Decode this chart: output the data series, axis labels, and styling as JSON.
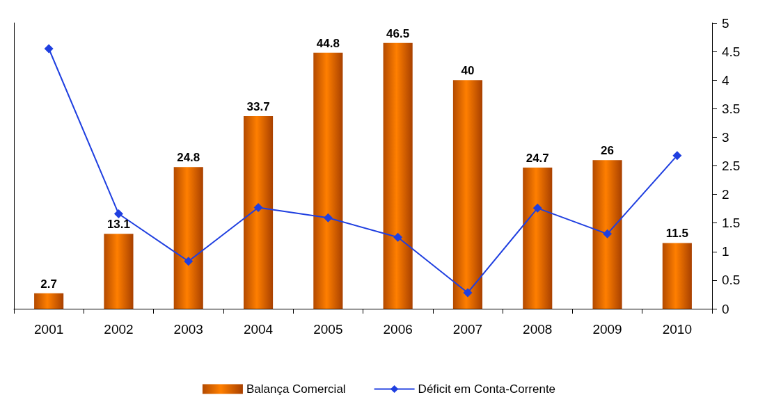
{
  "chart_data": {
    "type": "bar",
    "categories": [
      "2001",
      "2002",
      "2003",
      "2004",
      "2005",
      "2006",
      "2007",
      "2008",
      "2009",
      "2010"
    ],
    "series": [
      {
        "name": "Balança Comercial",
        "color": "#ff7f00",
        "values": [
          2.7,
          13.1,
          24.8,
          33.7,
          44.8,
          46.5,
          40,
          24.7,
          26,
          11.5
        ],
        "value_labels": [
          "2.7",
          "13.1",
          "24.8",
          "33.7",
          "44.8",
          "46.5",
          "40",
          "24.7",
          "26",
          "11.5"
        ]
      },
      {
        "name": "Déficit em Conta-Corrente",
        "type": "line",
        "axis": "y2",
        "color": "#1f3fe0",
        "values": [
          4.55,
          1.66,
          0.83,
          1.77,
          1.59,
          1.25,
          0.28,
          1.76,
          1.31,
          2.68
        ]
      }
    ],
    "ylim": [
      0,
      50
    ],
    "y2lim": [
      0,
      5
    ],
    "y2ticks": [
      0,
      0.5,
      1,
      1.5,
      2,
      2.5,
      3,
      3.5,
      4,
      4.5,
      5
    ],
    "legend": "bottom",
    "grid": false,
    "marker": "diamond",
    "line_style": "solid"
  }
}
